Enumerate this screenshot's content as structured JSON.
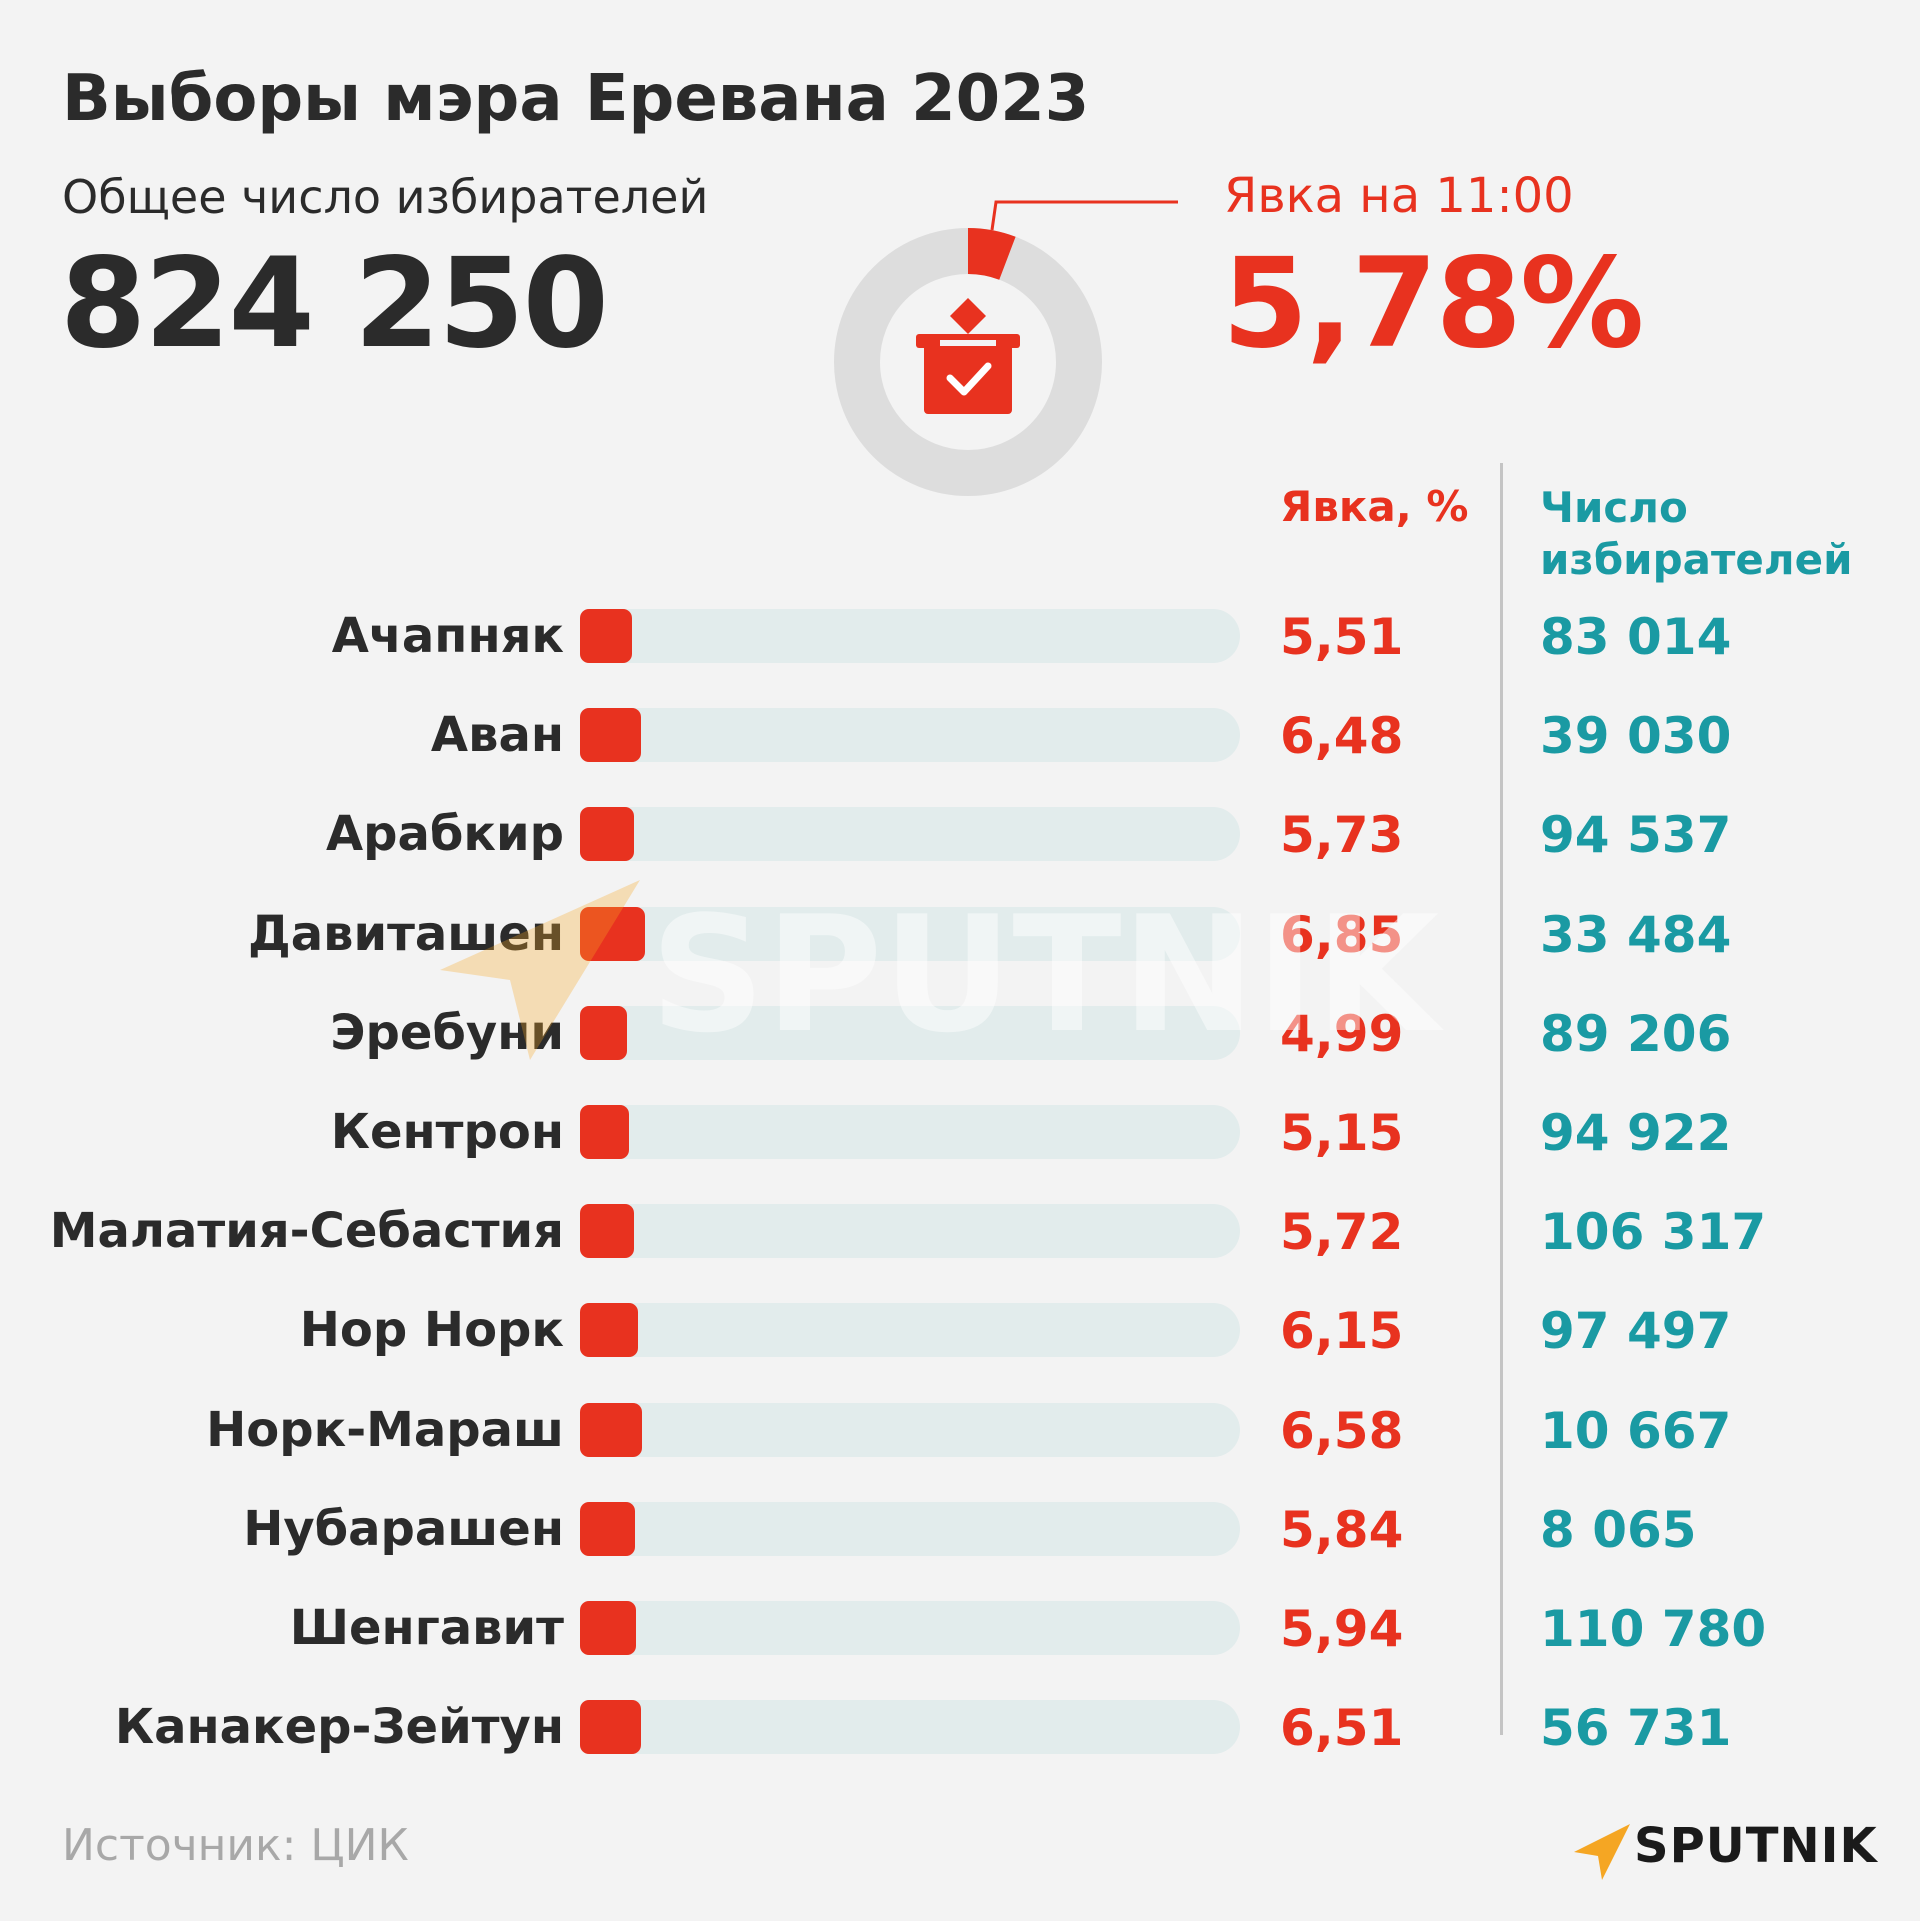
{
  "header": {
    "title": "Выборы мэра Еревана 2023",
    "total_voters_label": "Общее число избирателей",
    "total_voters_value": "824 250",
    "turnout_label": "Явка на 11:00",
    "turnout_value": "5,78%"
  },
  "donut": {
    "turnout_fraction": 0.0578,
    "icon": "ballot-box-icon"
  },
  "table": {
    "turnout_header": "Явка, %",
    "voters_header_line1": "Число",
    "voters_header_line2": "избирателей"
  },
  "chart_data": {
    "type": "bar",
    "orientation": "horizontal",
    "title": "Выборы мэра Еревана 2023",
    "categories": [
      "Ачапняк",
      "Аван",
      "Арабкир",
      "Давиташен",
      "Эребуни",
      "Кентрон",
      "Малатия-Себастия",
      "Нор Норк",
      "Норк-Мараш",
      "Нубарашен",
      "Шенгавит",
      "Канакер-Зейтун"
    ],
    "series": [
      {
        "name": "Явка, %",
        "values": [
          5.51,
          6.48,
          5.73,
          6.85,
          4.99,
          5.15,
          5.72,
          6.15,
          6.58,
          5.84,
          5.94,
          6.51
        ]
      }
    ],
    "value_labels": [
      "5,51",
      "6,48",
      "5,73",
      "6,85",
      "4,99",
      "5,15",
      "5,72",
      "6,15",
      "6,58",
      "5,84",
      "5,94",
      "6,51"
    ],
    "voters": [
      "83 014",
      "39 030",
      "94 537",
      "33 484",
      "89 206",
      "94 922",
      "106 317",
      "97 497",
      "10 667",
      "8 065",
      "110 780",
      "56 731"
    ],
    "xlim": [
      0,
      70
    ],
    "grid": false,
    "bar_color": "#e8321f",
    "track_color": "#e2ecec"
  },
  "footer": {
    "source": "Источник: ЦИК",
    "brand": "SPUTNIK",
    "watermark": "SPUTNIK"
  },
  "colors": {
    "accent_red": "#e8321f",
    "teal": "#1a9aa3",
    "dark_text": "#2b2b2b",
    "background": "#f3f3f3",
    "brand_orange": "#f5a623"
  }
}
